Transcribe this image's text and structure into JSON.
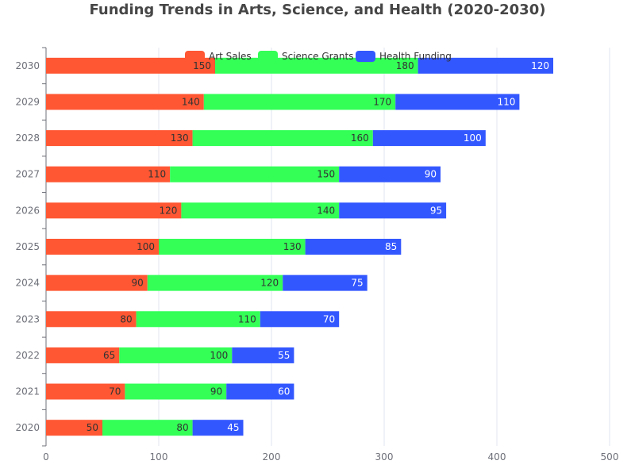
{
  "chart_data": {
    "type": "bar",
    "orientation": "horizontal",
    "stacked": true,
    "title": "Funding Trends in Arts, Science, and Health (2020-2030)",
    "categories": [
      "2020",
      "2021",
      "2022",
      "2023",
      "2024",
      "2025",
      "2026",
      "2027",
      "2028",
      "2029",
      "2030"
    ],
    "series": [
      {
        "name": "Art Sales",
        "color": "#ff5733",
        "label_color": "#333333",
        "values": [
          50,
          70,
          65,
          80,
          90,
          100,
          120,
          110,
          130,
          140,
          150
        ]
      },
      {
        "name": "Science Grants",
        "color": "#33ff57",
        "label_color": "#333333",
        "values": [
          80,
          90,
          100,
          110,
          120,
          130,
          140,
          150,
          160,
          170,
          180
        ]
      },
      {
        "name": "Health Funding",
        "color": "#3357ff",
        "label_color": "#ffffff",
        "values": [
          45,
          60,
          55,
          70,
          75,
          85,
          95,
          90,
          100,
          110,
          120
        ]
      }
    ],
    "x_ticks": [
      "0",
      "100",
      "200",
      "300",
      "400",
      "500"
    ],
    "xlim": [
      0,
      500
    ],
    "legend_position": "top-center",
    "grid": true
  }
}
